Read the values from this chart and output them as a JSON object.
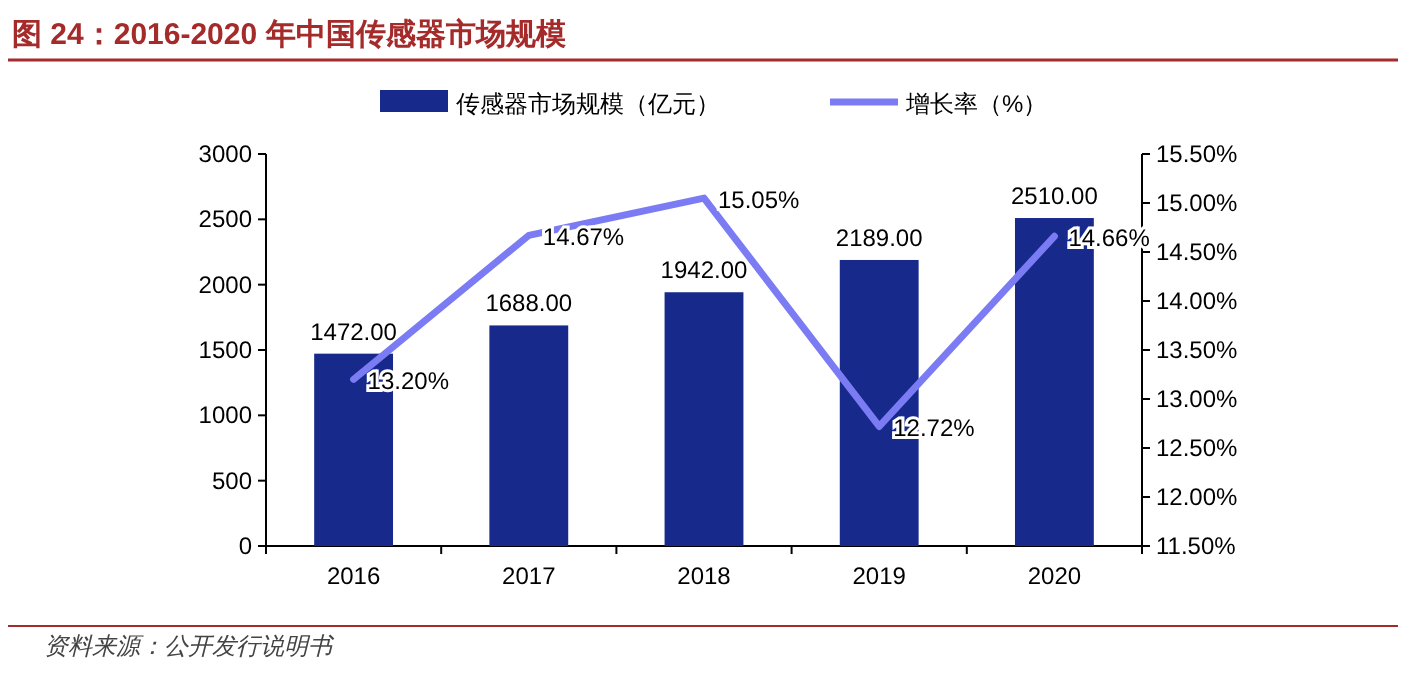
{
  "chart_data": {
    "type": "bar",
    "title": "图 24：2016-2020 年中国传感器市场规模",
    "categories": [
      "2016",
      "2017",
      "2018",
      "2019",
      "2020"
    ],
    "series": [
      {
        "name": "传感器市场规模（亿元）",
        "color": "#172a8c",
        "values": [
          1472,
          1688,
          1942,
          2189,
          2510
        ],
        "value_labels": [
          "1472.00",
          "1688.00",
          "1942.00",
          "2189.00",
          "2510.00"
        ]
      },
      {
        "name": "增长率（%）",
        "type": "line",
        "axis": "y2",
        "color": "#7b7cf4",
        "values": [
          13.2,
          14.67,
          15.05,
          12.72,
          14.66
        ],
        "value_labels": [
          "13.20%",
          "14.67%",
          "15.05%",
          "12.72%",
          "14.66%"
        ]
      }
    ],
    "ylim": [
      0,
      3000
    ],
    "yticks": [
      0,
      500,
      1000,
      1500,
      2000,
      2500,
      3000
    ],
    "y2lim": [
      11.5,
      15.5
    ],
    "y2ticks": [
      {
        "value": 11.5,
        "label": "11.50%"
      },
      {
        "value": 12,
        "label": "12.00%"
      },
      {
        "value": 12.5,
        "label": "12.50%"
      },
      {
        "value": 13,
        "label": "13.00%"
      },
      {
        "value": 13.5,
        "label": "13.50%"
      },
      {
        "value": 14,
        "label": "14.00%"
      },
      {
        "value": 14.5,
        "label": "14.50%"
      },
      {
        "value": 15,
        "label": "15.00%"
      },
      {
        "value": 15.5,
        "label": "15.50%"
      }
    ],
    "legend": "top",
    "grid": false,
    "annotations": [
      "资料来源：公开发行说明书"
    ]
  }
}
